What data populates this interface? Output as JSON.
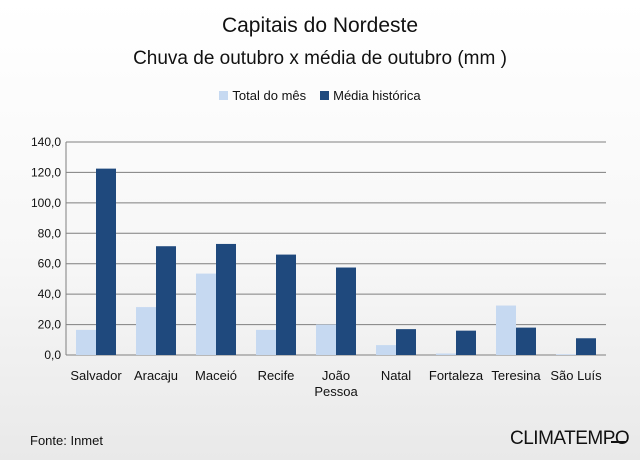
{
  "chart_data": {
    "type": "bar",
    "title": "Capitais do Nordeste",
    "subtitle": "Chuva de outubro x média de outubro (mm )",
    "categories": [
      "Salvador",
      "Aracaju",
      "Maceió",
      "Recife",
      "João Pessoa",
      "Natal",
      "Fortaleza",
      "Teresina",
      "São Luís"
    ],
    "series": [
      {
        "name": "Total do mês",
        "color": "#c6d9f1",
        "values": [
          16.5,
          31.5,
          53.5,
          16.5,
          20.0,
          6.5,
          1.0,
          32.5,
          0.5
        ]
      },
      {
        "name": "Média histórica",
        "color": "#1f497d",
        "values": [
          122.5,
          71.5,
          73.0,
          66.0,
          57.5,
          17.0,
          16.0,
          18.0,
          11.0
        ]
      }
    ],
    "yticks": [
      "0,0",
      "20,0",
      "40,0",
      "60,0",
      "80,0",
      "100,0",
      "120,0",
      "140,0"
    ],
    "ylim": [
      0,
      140
    ],
    "grid": true,
    "legend_position": "top"
  },
  "footer": {
    "source": "Fonte: Inmet",
    "logo": "CLIMATEMPO"
  }
}
